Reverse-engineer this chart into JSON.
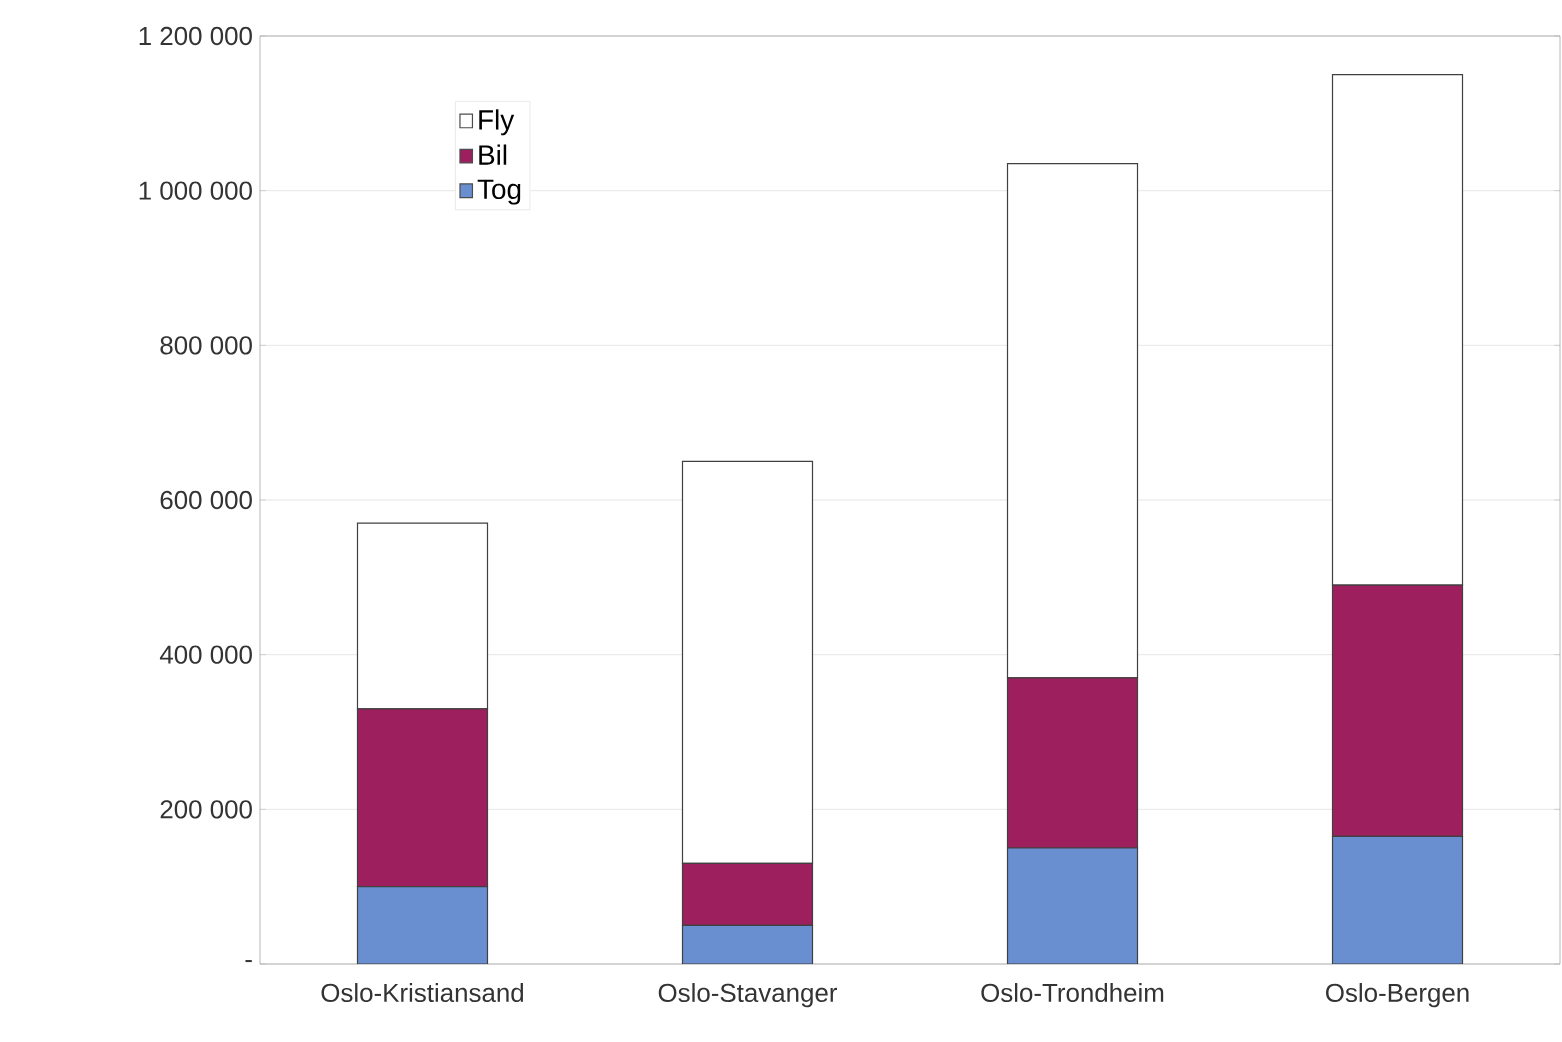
{
  "chart_data": {
    "type": "bar",
    "stacked": true,
    "categories": [
      "Oslo-Kristiansand",
      "Oslo-Stavanger",
      "Oslo-Trondheim",
      "Oslo-Bergen"
    ],
    "series": [
      {
        "name": "Tog",
        "color": "#6a8fd0",
        "values": [
          100000,
          50000,
          150000,
          165000
        ]
      },
      {
        "name": "Bil",
        "color": "#9e1f5e",
        "values": [
          230000,
          80000,
          220000,
          325000
        ]
      },
      {
        "name": "Fly",
        "color": "#ffffff",
        "values": [
          240000,
          520000,
          665000,
          660000
        ]
      }
    ],
    "ylim": [
      0,
      1200000
    ],
    "yticks": [
      {
        "value": 0,
        "label": "-"
      },
      {
        "value": 200000,
        "label": "200 000"
      },
      {
        "value": 400000,
        "label": "400 000"
      },
      {
        "value": 600000,
        "label": "600 000"
      },
      {
        "value": 800000,
        "label": "800 000"
      },
      {
        "value": 1000000,
        "label": "1 000 000"
      },
      {
        "value": 1200000,
        "label": "1 200 000"
      }
    ],
    "grid": "y",
    "legend": "top left"
  }
}
